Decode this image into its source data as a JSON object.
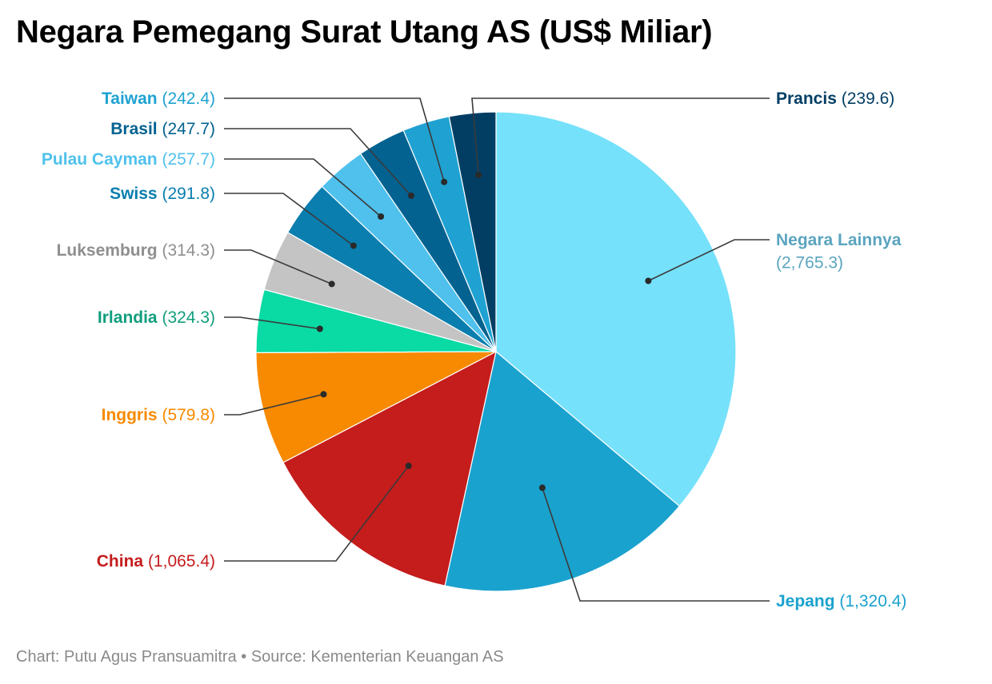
{
  "title": "Negara Pemegang Surat Utang AS (US$ Miliar)",
  "footer": {
    "chart_credit": "Chart: Putu Agus Pransuamitra",
    "separator": "•",
    "source": "Source: Kementerian Keuangan AS"
  },
  "chart_data": {
    "type": "pie",
    "title": "Negara Pemegang Surat Utang AS (US$ Miliar)",
    "slices": [
      {
        "label": "Negara Lainnya",
        "value": 2765.3,
        "display": "(2,765.3)",
        "color": "#76e1fb",
        "label_color": "#5aa4bf"
      },
      {
        "label": "Jepang",
        "value": 1320.4,
        "display": "(1,320.4)",
        "color": "#1aa2ce",
        "label_color": "#1aa2ce"
      },
      {
        "label": "China",
        "value": 1065.4,
        "display": "(1,065.4)",
        "color": "#c51c1c",
        "label_color": "#c51c1c"
      },
      {
        "label": "Inggris",
        "value": 579.8,
        "display": "(579.8)",
        "color": "#f78a00",
        "label_color": "#f78a00"
      },
      {
        "label": "Irlandia",
        "value": 324.3,
        "display": "(324.3)",
        "color": "#0adaa4",
        "label_color": "#119e7e"
      },
      {
        "label": "Luksemburg",
        "value": 314.3,
        "display": "(314.3)",
        "color": "#c4c4c4",
        "label_color": "#8f8f8f"
      },
      {
        "label": "Swiss",
        "value": 291.8,
        "display": "(291.8)",
        "color": "#0a7eae",
        "label_color": "#0a7eae"
      },
      {
        "label": "Pulau Cayman",
        "value": 257.7,
        "display": "(257.7)",
        "color": "#4fc1ec",
        "label_color": "#4fc1ec"
      },
      {
        "label": "Brasil",
        "value": 247.7,
        "display": "(247.7)",
        "color": "#036290",
        "label_color": "#036290"
      },
      {
        "label": "Taiwan",
        "value": 242.4,
        "display": "(242.4)",
        "color": "#1fa2d2",
        "label_color": "#1fa2d2"
      },
      {
        "label": "Prancis",
        "value": 239.6,
        "display": "(239.6)",
        "color": "#023e64",
        "label_color": "#023e64"
      }
    ]
  }
}
